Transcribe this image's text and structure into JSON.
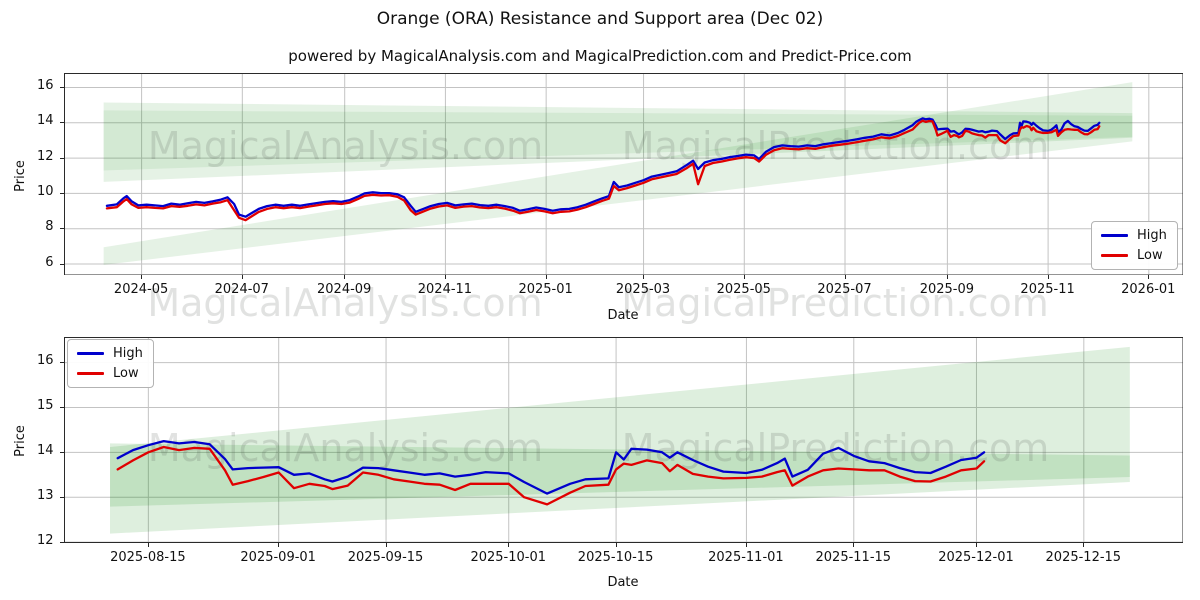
{
  "title": "Orange (ORA) Resistance and Support area (Dec 02)",
  "subtitle": "powered by MagicalAnalysis.com and MagicalPrediction.com and Predict-Price.com",
  "legend": {
    "high_label": "High",
    "low_label": "Low"
  },
  "watermarks": {
    "left": "MagicalAnalysis.com",
    "right": "MagicalPrediction.com"
  },
  "colors": {
    "high": "#0000cc",
    "low": "#e00000",
    "band": "#008000",
    "grid": "#c3c3c3",
    "spine": "#2a2a2a",
    "watermark": "rgba(70,75,70,0.16)"
  },
  "chart_data": [
    {
      "type": "line",
      "name": "overview",
      "xlabel": "Date",
      "ylabel": "Price",
      "xlim": [
        "2024-03-15",
        "2026-01-22"
      ],
      "ylim": [
        5.35,
        16.82
      ],
      "x_ticks": [
        "2024-05",
        "2024-07",
        "2024-09",
        "2024-11",
        "2025-01",
        "2025-03",
        "2025-05",
        "2025-07",
        "2025-09",
        "2025-11",
        "2026-01"
      ],
      "y_ticks": [
        6,
        8,
        10,
        12,
        14,
        16
      ],
      "grid": true,
      "legend_position": "lower right",
      "series_names": [
        "High",
        "Low"
      ],
      "bands": [
        {
          "name": "resistance-outer",
          "x": [
            "2024-04-08",
            "2025-12-22"
          ],
          "top": [
            15.15,
            14.55
          ],
          "bottom": [
            10.65,
            13.15
          ],
          "alpha": 0.1
        },
        {
          "name": "resistance-inner",
          "x": [
            "2024-04-08",
            "2025-12-22"
          ],
          "top": [
            14.7,
            14.4
          ],
          "bottom": [
            11.3,
            13.2
          ],
          "alpha": 0.08
        },
        {
          "name": "support-wedge",
          "x": [
            "2024-04-08",
            "2025-12-22"
          ],
          "top": [
            6.95,
            16.3
          ],
          "bottom": [
            5.95,
            12.95
          ],
          "alpha": 0.1
        }
      ],
      "columns": [
        "date",
        "high",
        "low"
      ],
      "rows": [
        [
          "2024-04-10",
          9.3,
          9.15
        ],
        [
          "2024-04-16",
          9.38,
          9.22
        ],
        [
          "2024-04-20",
          9.72,
          9.55
        ],
        [
          "2024-04-22",
          9.85,
          9.68
        ],
        [
          "2024-04-25",
          9.55,
          9.38
        ],
        [
          "2024-04-29",
          9.32,
          9.18
        ],
        [
          "2024-05-04",
          9.36,
          9.22
        ],
        [
          "2024-05-09",
          9.32,
          9.18
        ],
        [
          "2024-05-14",
          9.28,
          9.15
        ],
        [
          "2024-05-19",
          9.42,
          9.28
        ],
        [
          "2024-05-24",
          9.36,
          9.24
        ],
        [
          "2024-05-29",
          9.44,
          9.3
        ],
        [
          "2024-06-03",
          9.52,
          9.38
        ],
        [
          "2024-06-08",
          9.46,
          9.32
        ],
        [
          "2024-06-13",
          9.55,
          9.42
        ],
        [
          "2024-06-18",
          9.65,
          9.5
        ],
        [
          "2024-06-22",
          9.78,
          9.62
        ],
        [
          "2024-06-26",
          9.4,
          9.05
        ],
        [
          "2024-06-29",
          8.8,
          8.62
        ],
        [
          "2024-07-03",
          8.68,
          8.48
        ],
        [
          "2024-07-07",
          8.9,
          8.72
        ],
        [
          "2024-07-11",
          9.12,
          8.95
        ],
        [
          "2024-07-16",
          9.28,
          9.12
        ],
        [
          "2024-07-21",
          9.36,
          9.22
        ],
        [
          "2024-07-26",
          9.3,
          9.16
        ],
        [
          "2024-07-31",
          9.36,
          9.22
        ],
        [
          "2024-08-05",
          9.3,
          9.17
        ],
        [
          "2024-08-10",
          9.38,
          9.25
        ],
        [
          "2024-08-15",
          9.45,
          9.32
        ],
        [
          "2024-08-20",
          9.52,
          9.4
        ],
        [
          "2024-08-25",
          9.56,
          9.44
        ],
        [
          "2024-08-30",
          9.52,
          9.4
        ],
        [
          "2024-09-04",
          9.62,
          9.48
        ],
        [
          "2024-09-09",
          9.82,
          9.68
        ],
        [
          "2024-09-13",
          10.0,
          9.86
        ],
        [
          "2024-09-18",
          10.06,
          9.92
        ],
        [
          "2024-09-23",
          10.02,
          9.88
        ],
        [
          "2024-09-28",
          10.02,
          9.9
        ],
        [
          "2024-10-03",
          9.95,
          9.8
        ],
        [
          "2024-10-07",
          9.78,
          9.6
        ],
        [
          "2024-10-11",
          9.3,
          9.05
        ],
        [
          "2024-10-14",
          8.96,
          8.8
        ],
        [
          "2024-10-18",
          9.1,
          8.95
        ],
        [
          "2024-10-23",
          9.28,
          9.14
        ],
        [
          "2024-10-28",
          9.4,
          9.26
        ],
        [
          "2024-11-02",
          9.46,
          9.32
        ],
        [
          "2024-11-07",
          9.32,
          9.18
        ],
        [
          "2024-11-12",
          9.38,
          9.25
        ],
        [
          "2024-11-17",
          9.42,
          9.28
        ],
        [
          "2024-11-22",
          9.34,
          9.2
        ],
        [
          "2024-11-27",
          9.3,
          9.17
        ],
        [
          "2024-12-02",
          9.36,
          9.22
        ],
        [
          "2024-12-07",
          9.28,
          9.14
        ],
        [
          "2024-12-12",
          9.18,
          9.02
        ],
        [
          "2024-12-16",
          9.02,
          8.88
        ],
        [
          "2024-12-21",
          9.1,
          8.96
        ],
        [
          "2024-12-26",
          9.2,
          9.06
        ],
        [
          "2024-12-31",
          9.12,
          8.98
        ],
        [
          "2025-01-05",
          9.02,
          8.88
        ],
        [
          "2025-01-10",
          9.1,
          8.96
        ],
        [
          "2025-01-15",
          9.12,
          8.98
        ],
        [
          "2025-01-20",
          9.22,
          9.08
        ],
        [
          "2025-01-25",
          9.36,
          9.22
        ],
        [
          "2025-01-30",
          9.55,
          9.4
        ],
        [
          "2025-02-04",
          9.72,
          9.58
        ],
        [
          "2025-02-08",
          9.85,
          9.7
        ],
        [
          "2025-02-11",
          10.65,
          10.42
        ],
        [
          "2025-02-14",
          10.35,
          10.18
        ],
        [
          "2025-02-19",
          10.45,
          10.3
        ],
        [
          "2025-02-24",
          10.6,
          10.45
        ],
        [
          "2025-03-01",
          10.75,
          10.6
        ],
        [
          "2025-03-06",
          10.95,
          10.8
        ],
        [
          "2025-03-11",
          11.05,
          10.9
        ],
        [
          "2025-03-16",
          11.15,
          11.0
        ],
        [
          "2025-03-21",
          11.25,
          11.1
        ],
        [
          "2025-03-27",
          11.6,
          11.42
        ],
        [
          "2025-03-31",
          11.85,
          11.68
        ],
        [
          "2025-04-03",
          11.38,
          10.52
        ],
        [
          "2025-04-07",
          11.75,
          11.55
        ],
        [
          "2025-04-12",
          11.88,
          11.72
        ],
        [
          "2025-04-17",
          11.95,
          11.8
        ],
        [
          "2025-04-22",
          12.05,
          11.9
        ],
        [
          "2025-04-27",
          12.12,
          11.98
        ],
        [
          "2025-05-02",
          12.2,
          12.05
        ],
        [
          "2025-05-07",
          12.15,
          12.0
        ],
        [
          "2025-05-10",
          11.95,
          11.8
        ],
        [
          "2025-05-14",
          12.35,
          12.18
        ],
        [
          "2025-05-19",
          12.62,
          12.45
        ],
        [
          "2025-05-24",
          12.72,
          12.56
        ],
        [
          "2025-05-29",
          12.68,
          12.52
        ],
        [
          "2025-06-03",
          12.65,
          12.5
        ],
        [
          "2025-06-08",
          12.72,
          12.56
        ],
        [
          "2025-06-13",
          12.68,
          12.52
        ],
        [
          "2025-06-18",
          12.78,
          12.62
        ],
        [
          "2025-06-23",
          12.85,
          12.7
        ],
        [
          "2025-06-28",
          12.92,
          12.76
        ],
        [
          "2025-07-03",
          12.98,
          12.82
        ],
        [
          "2025-07-08",
          13.06,
          12.9
        ],
        [
          "2025-07-13",
          13.15,
          12.98
        ],
        [
          "2025-07-18",
          13.22,
          13.06
        ],
        [
          "2025-07-23",
          13.35,
          13.18
        ],
        [
          "2025-07-28",
          13.28,
          13.12
        ],
        [
          "2025-08-02",
          13.42,
          13.25
        ],
        [
          "2025-08-06",
          13.6,
          13.42
        ],
        [
          "2025-08-11",
          13.87,
          13.62
        ],
        [
          "2025-08-13",
          14.05,
          13.82
        ],
        [
          "2025-08-15",
          14.16,
          14.0
        ],
        [
          "2025-08-17",
          14.25,
          14.12
        ],
        [
          "2025-08-19",
          14.2,
          14.05
        ],
        [
          "2025-08-21",
          14.23,
          14.1
        ],
        [
          "2025-08-23",
          14.18,
          14.08
        ],
        [
          "2025-08-25",
          13.85,
          13.6
        ],
        [
          "2025-08-26",
          13.62,
          13.28
        ],
        [
          "2025-08-28",
          13.65,
          13.36
        ],
        [
          "2025-08-30",
          13.66,
          13.45
        ],
        [
          "2025-09-01",
          13.67,
          13.55
        ],
        [
          "2025-09-03",
          13.5,
          13.2
        ],
        [
          "2025-09-05",
          13.53,
          13.3
        ],
        [
          "2025-09-07",
          13.4,
          13.25
        ],
        [
          "2025-09-08",
          13.35,
          13.18
        ],
        [
          "2025-09-10",
          13.46,
          13.26
        ],
        [
          "2025-09-12",
          13.66,
          13.55
        ],
        [
          "2025-09-14",
          13.65,
          13.5
        ],
        [
          "2025-09-16",
          13.6,
          13.4
        ],
        [
          "2025-09-18",
          13.55,
          13.35
        ],
        [
          "2025-09-20",
          13.5,
          13.3
        ],
        [
          "2025-09-22",
          13.53,
          13.28
        ],
        [
          "2025-09-24",
          13.46,
          13.16
        ],
        [
          "2025-09-26",
          13.5,
          13.3
        ],
        [
          "2025-09-28",
          13.56,
          13.3
        ],
        [
          "2025-10-01",
          13.53,
          13.3
        ],
        [
          "2025-10-03",
          13.34,
          13.0
        ],
        [
          "2025-10-06",
          13.08,
          12.84
        ],
        [
          "2025-10-09",
          13.3,
          13.1
        ],
        [
          "2025-10-11",
          13.4,
          13.25
        ],
        [
          "2025-10-14",
          13.42,
          13.28
        ],
        [
          "2025-10-15",
          14.0,
          13.62
        ],
        [
          "2025-10-16",
          13.84,
          13.75
        ],
        [
          "2025-10-17",
          14.08,
          13.72
        ],
        [
          "2025-10-19",
          14.06,
          13.82
        ],
        [
          "2025-10-21",
          14.0,
          13.76
        ],
        [
          "2025-10-22",
          13.88,
          13.58
        ],
        [
          "2025-10-23",
          14.0,
          13.72
        ],
        [
          "2025-10-25",
          13.83,
          13.52
        ],
        [
          "2025-10-27",
          13.68,
          13.46
        ],
        [
          "2025-10-29",
          13.57,
          13.42
        ],
        [
          "2025-11-01",
          13.54,
          13.43
        ],
        [
          "2025-11-03",
          13.61,
          13.46
        ],
        [
          "2025-11-05",
          13.76,
          13.56
        ],
        [
          "2025-11-06",
          13.86,
          13.6
        ],
        [
          "2025-11-07",
          13.46,
          13.26
        ],
        [
          "2025-11-09",
          13.61,
          13.46
        ],
        [
          "2025-11-11",
          13.97,
          13.6
        ],
        [
          "2025-11-13",
          14.1,
          13.64
        ],
        [
          "2025-11-15",
          13.92,
          13.62
        ],
        [
          "2025-11-17",
          13.8,
          13.6
        ],
        [
          "2025-11-19",
          13.76,
          13.6
        ],
        [
          "2025-11-21",
          13.65,
          13.46
        ],
        [
          "2025-11-23",
          13.56,
          13.36
        ],
        [
          "2025-11-25",
          13.54,
          13.35
        ],
        [
          "2025-11-27",
          13.68,
          13.46
        ],
        [
          "2025-11-29",
          13.83,
          13.6
        ],
        [
          "2025-12-01",
          13.88,
          13.64
        ],
        [
          "2025-12-02",
          14.0,
          13.8
        ]
      ]
    },
    {
      "type": "line",
      "name": "detail",
      "xlabel": "Date",
      "ylabel": "Price",
      "xlim": [
        "2025-08-04",
        "2025-12-28"
      ],
      "ylim": [
        11.98,
        16.57
      ],
      "x_ticks": [
        "2025-08-15",
        "2025-09-01",
        "2025-09-15",
        "2025-10-01",
        "2025-10-15",
        "2025-11-01",
        "2025-11-15",
        "2025-12-01",
        "2025-12-15"
      ],
      "y_ticks": [
        12,
        13,
        14,
        15,
        16
      ],
      "grid": true,
      "legend_position": "upper left",
      "series_names": [
        "High",
        "Low"
      ],
      "bands": [
        {
          "name": "resistance-band",
          "x": [
            "2025-08-10",
            "2025-12-21"
          ],
          "top": [
            14.2,
            13.93
          ],
          "bottom": [
            12.79,
            13.45
          ],
          "alpha": 0.13
        },
        {
          "name": "support-band",
          "x": [
            "2025-08-10",
            "2025-12-21"
          ],
          "top": [
            14.12,
            16.35
          ],
          "bottom": [
            12.19,
            13.34
          ],
          "alpha": 0.13
        }
      ],
      "columns": [
        "date",
        "high",
        "low"
      ],
      "rows_source": 0,
      "rows_from": "2025-08-11"
    }
  ]
}
